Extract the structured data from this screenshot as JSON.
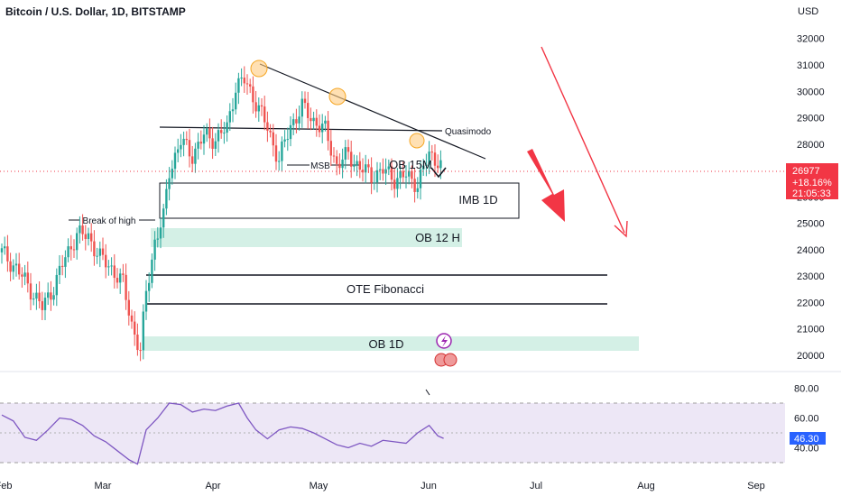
{
  "header": {
    "title": "Bitcoin / U.S. Dollar, 1D, BITSTAMP"
  },
  "axis": {
    "currency": "USD",
    "price_ticks": [
      "32000",
      "31000",
      "30000",
      "29000",
      "28000",
      "27000",
      "26000",
      "25000",
      "24000",
      "23000",
      "22000",
      "21000",
      "20000"
    ],
    "rsi_ticks": [
      "80.00",
      "60.00",
      "40.00"
    ],
    "months": [
      "Feb",
      "Mar",
      "Apr",
      "May",
      "Jun",
      "Jul",
      "Aug",
      "Sep"
    ]
  },
  "last_price": {
    "price": "26977",
    "change": "+18.16%",
    "countdown": "21:05:33"
  },
  "rsi_value": "46.30",
  "annotations": {
    "break_of_high": "Break of high",
    "quasimodo": "Quasimodo",
    "msb": "MSB",
    "ob_15m": "OB 15M",
    "imb_1d": "IMB 1D",
    "ob_12h": "OB 12 H",
    "ote": "OTE  Fibonacci",
    "ob_1d": "OB 1D"
  },
  "colors": {
    "up": "#26a69a",
    "down": "#ef5350",
    "zone_fill": "#d4f0e6",
    "rsi_line": "#7e57c2",
    "rsi_band": "#ede7f6",
    "price_badge": "#f23645",
    "rsi_badge": "#2962ff",
    "arrow": "#f23645",
    "circle": "#ffcc80"
  },
  "chart_data": {
    "type": "candlestick",
    "title": "Bitcoin / U.S. Dollar, 1D, BITSTAMP",
    "y_unit": "USD",
    "ylim": [
      19300,
      32600
    ],
    "x_months": [
      "Feb",
      "Mar",
      "Apr",
      "May",
      "Jun",
      "Jul",
      "Aug",
      "Sep"
    ],
    "close_path": [
      [
        0,
        23900
      ],
      [
        5,
        23300
      ],
      [
        10,
        22500
      ],
      [
        14,
        21800
      ],
      [
        18,
        22600
      ],
      [
        22,
        23700
      ],
      [
        26,
        24600
      ],
      [
        30,
        24500
      ],
      [
        34,
        23700
      ],
      [
        38,
        23300
      ],
      [
        42,
        22700
      ],
      [
        45,
        21200
      ],
      [
        48,
        20100
      ],
      [
        50,
        22400
      ],
      [
        53,
        24300
      ],
      [
        56,
        25200
      ],
      [
        58,
        27000
      ],
      [
        62,
        28100
      ],
      [
        66,
        27600
      ],
      [
        70,
        28300
      ],
      [
        74,
        28200
      ],
      [
        78,
        28600
      ],
      [
        81,
        30200
      ],
      [
        84,
        30400
      ],
      [
        88,
        29600
      ],
      [
        92,
        28600
      ],
      [
        96,
        27400
      ],
      [
        100,
        28700
      ],
      [
        104,
        29400
      ],
      [
        108,
        28900
      ],
      [
        112,
        28500
      ],
      [
        116,
        27200
      ],
      [
        120,
        27600
      ],
      [
        124,
        27100
      ],
      [
        128,
        26800
      ],
      [
        132,
        27000
      ],
      [
        136,
        26700
      ],
      [
        140,
        26800
      ],
      [
        144,
        26500
      ],
      [
        148,
        27600
      ],
      [
        151,
        27400
      ],
      [
        153,
        26977
      ]
    ],
    "price_levels": [
      {
        "label": "Quasimodo",
        "price": 28600
      },
      {
        "label": "MSB",
        "price": 27200
      }
    ],
    "zones": [
      {
        "label": "IMB 1D",
        "from": 25200,
        "to": 26550
      },
      {
        "label": "OB 12 H",
        "from": 24100,
        "to": 24850
      },
      {
        "label": "OTE  Fibonacci",
        "from": 21950,
        "to": 23050
      },
      {
        "label": "OB 1D",
        "from": 20200,
        "to": 20750
      }
    ],
    "last_price": 26977,
    "change_pct": "+18.16%",
    "rsi": {
      "ylim": [
        28,
        87
      ],
      "bands": [
        30,
        70
      ],
      "mid": 50,
      "path": [
        [
          0,
          62
        ],
        [
          4,
          58
        ],
        [
          8,
          47
        ],
        [
          12,
          45
        ],
        [
          16,
          52
        ],
        [
          20,
          60
        ],
        [
          24,
          59
        ],
        [
          28,
          55
        ],
        [
          32,
          48
        ],
        [
          36,
          44
        ],
        [
          40,
          38
        ],
        [
          44,
          32
        ],
        [
          47,
          29
        ],
        [
          50,
          52
        ],
        [
          54,
          60
        ],
        [
          58,
          70
        ],
        [
          62,
          69
        ],
        [
          66,
          64
        ],
        [
          70,
          66
        ],
        [
          74,
          65
        ],
        [
          78,
          68
        ],
        [
          82,
          70
        ],
        [
          85,
          60
        ],
        [
          88,
          52
        ],
        [
          92,
          46
        ],
        [
          96,
          52
        ],
        [
          100,
          54
        ],
        [
          104,
          53
        ],
        [
          108,
          50
        ],
        [
          112,
          46
        ],
        [
          116,
          42
        ],
        [
          120,
          40
        ],
        [
          124,
          43
        ],
        [
          128,
          41
        ],
        [
          132,
          45
        ],
        [
          136,
          44
        ],
        [
          140,
          43
        ],
        [
          144,
          50
        ],
        [
          148,
          55
        ],
        [
          151,
          48
        ],
        [
          153,
          46.3
        ]
      ],
      "last": 46.3
    }
  }
}
